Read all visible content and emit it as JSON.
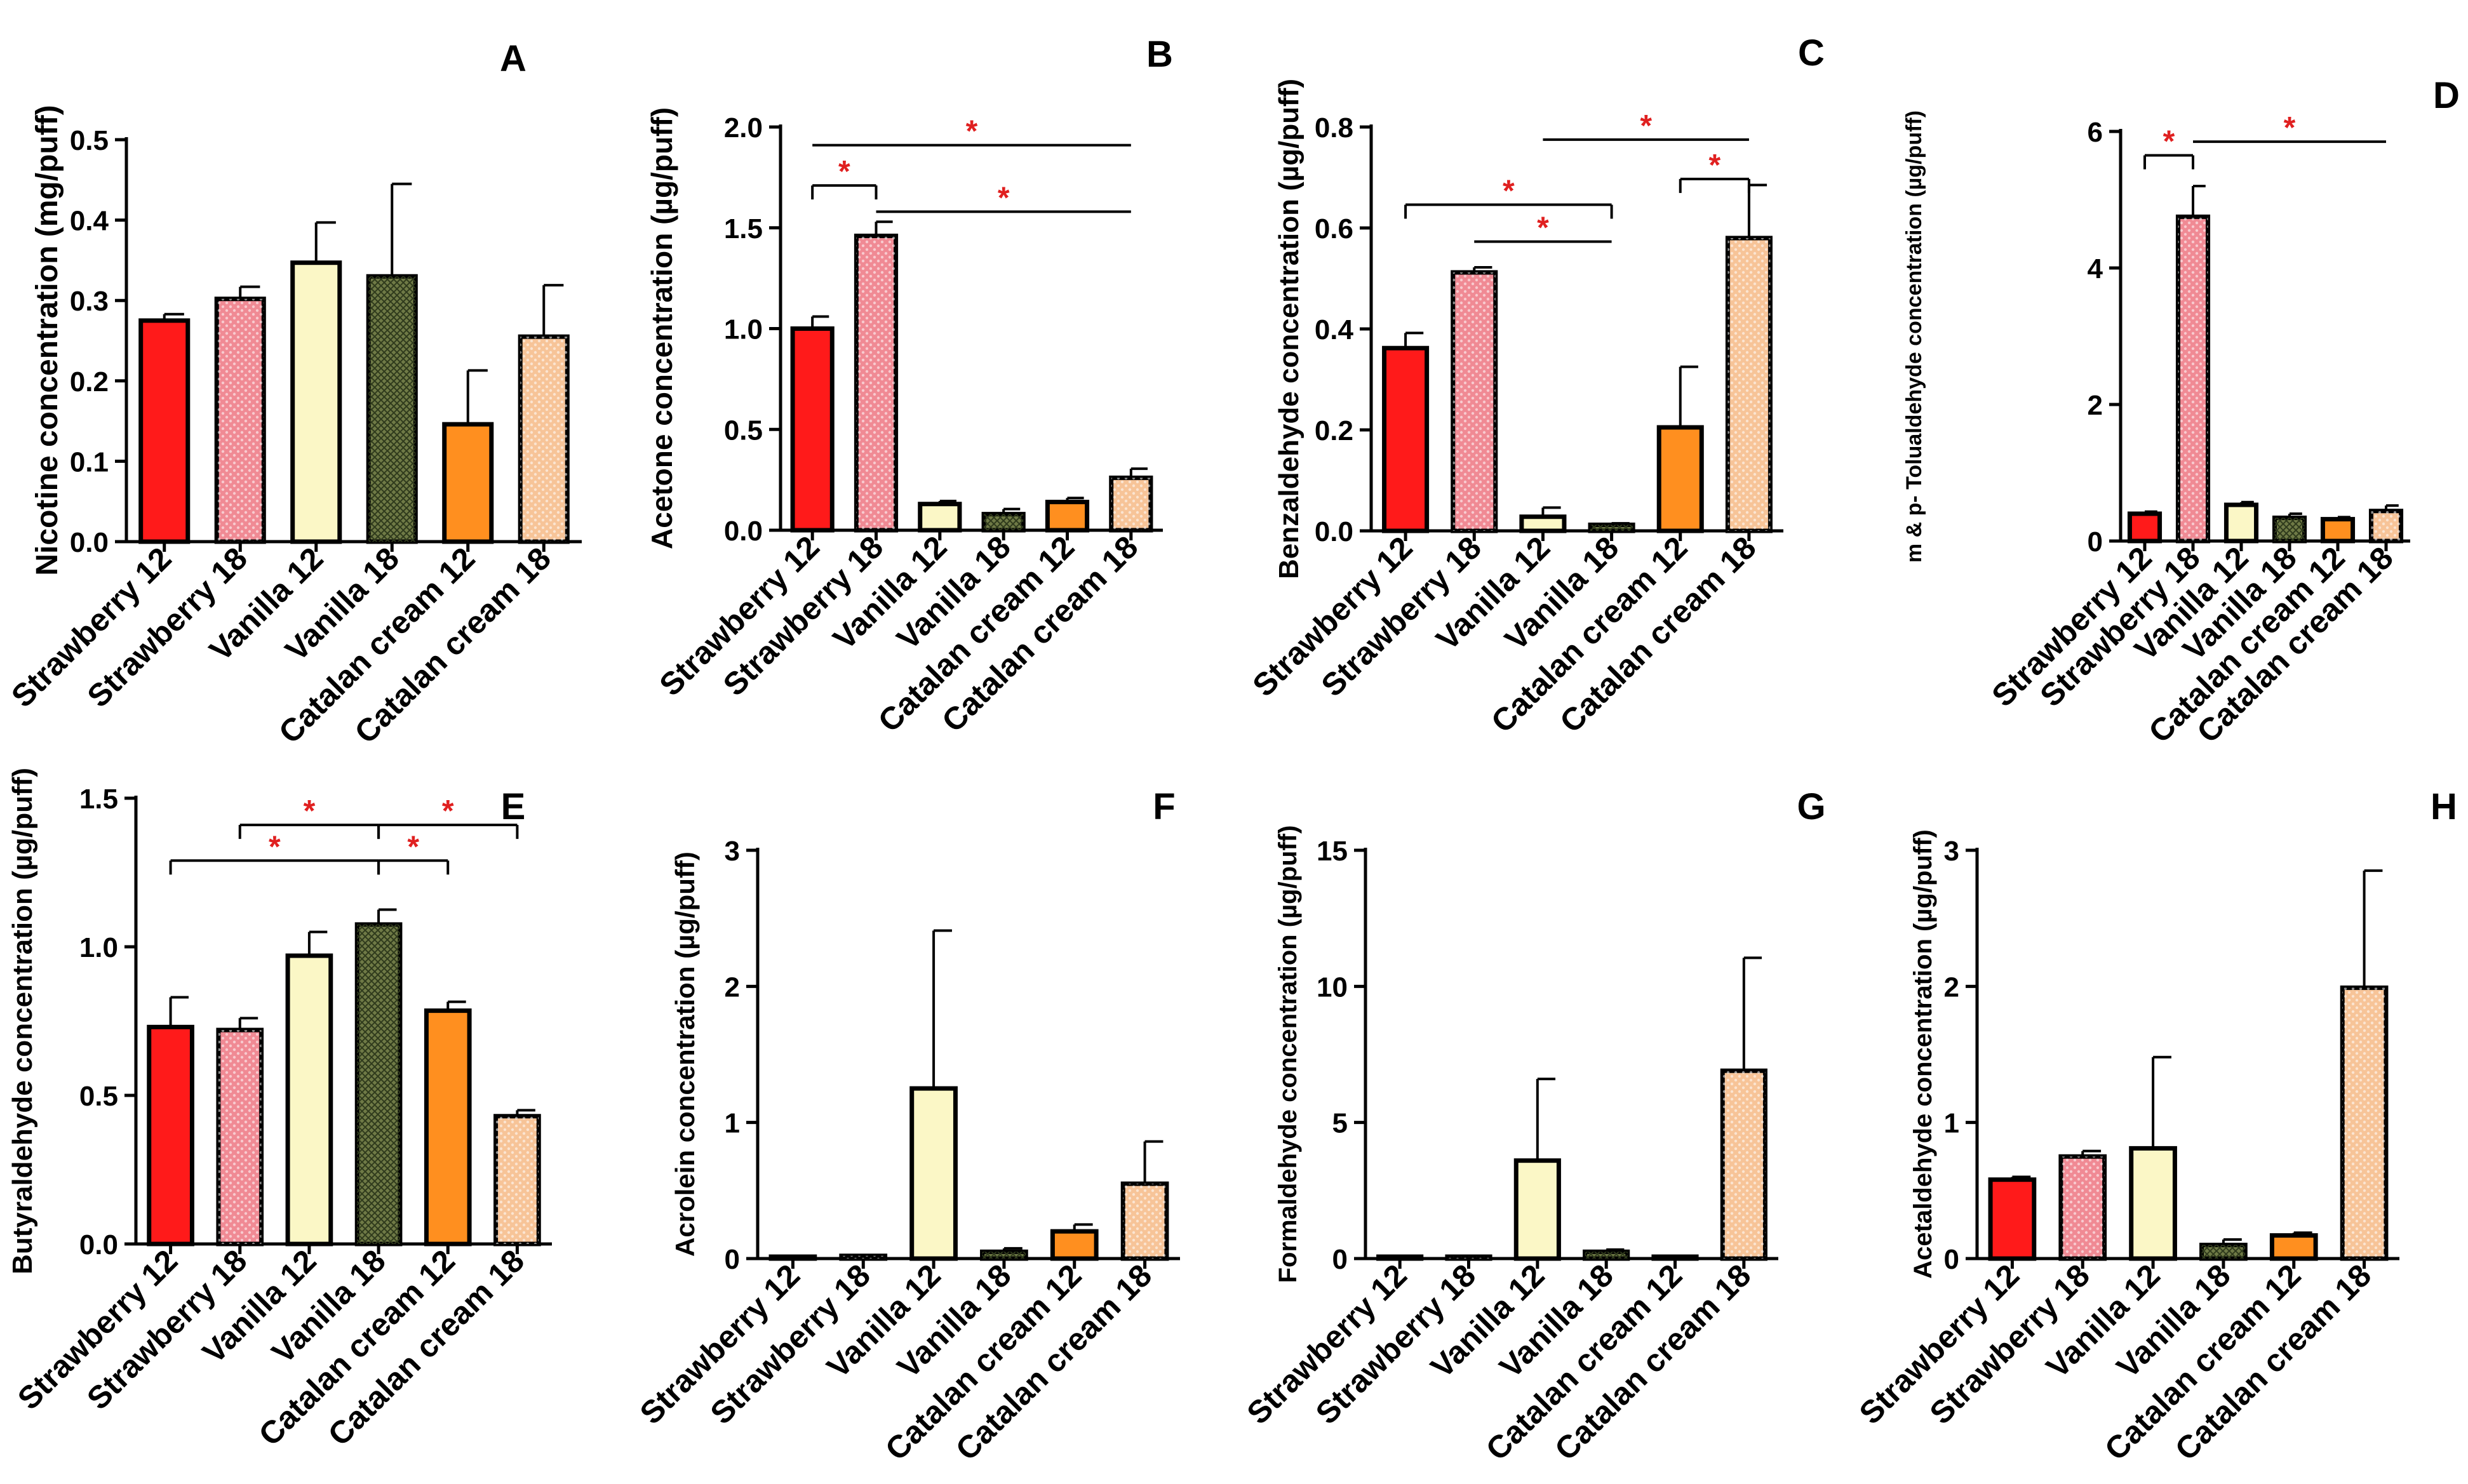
{
  "figure": {
    "categories": [
      "Strawberry 12",
      "Strawberry 18",
      "Vanilla 12",
      "Vanilla 18",
      "Catalan cream 12",
      "Catalan cream 18"
    ],
    "bar_colors": [
      "#ff1a1a",
      "#f08a94",
      "#fbf7c6",
      "#6f7a46",
      "#ff8f1f",
      "#f7c498"
    ],
    "significance_color": "#e02020",
    "significance_symbol": "*"
  },
  "chart_data": [
    {
      "id": "A",
      "panel_letter": "A",
      "type": "bar",
      "ylabel": "Nicotine concentration (mg/puff)",
      "ylim": [
        0,
        0.5
      ],
      "yticks": [
        "0.0",
        "0.1",
        "0.2",
        "0.3",
        "0.4",
        "0.5"
      ],
      "values": [
        0.275,
        0.302,
        0.347,
        0.33,
        0.146,
        0.255
      ],
      "errors": [
        0.008,
        0.015,
        0.05,
        0.115,
        0.067,
        0.064
      ],
      "significance": []
    },
    {
      "id": "B",
      "panel_letter": "B",
      "type": "bar",
      "ylabel": "Acetone concentration (µg/puff)",
      "ylim": [
        0,
        2.0
      ],
      "yticks": [
        "0.0",
        "0.5",
        "1.0",
        "1.5",
        "2.0"
      ],
      "values": [
        1.0,
        1.46,
        0.13,
        0.08,
        0.14,
        0.26
      ],
      "errors": [
        0.06,
        0.07,
        0.015,
        0.025,
        0.02,
        0.045
      ],
      "significance": [
        {
          "from": 0,
          "to": 1,
          "y": 1.71,
          "bracket": true
        },
        {
          "from": 0,
          "to": 5,
          "y": 1.91,
          "bracket": false
        },
        {
          "from": 1,
          "to": 5,
          "y": 1.58,
          "bracket": false
        }
      ]
    },
    {
      "id": "C",
      "panel_letter": "C",
      "type": "bar",
      "ylabel": "Benzaldehyde concentration (µg/puff)",
      "ylim": [
        0,
        0.8
      ],
      "yticks": [
        "0.0",
        "0.2",
        "0.4",
        "0.6",
        "0.8"
      ],
      "values": [
        0.362,
        0.512,
        0.028,
        0.012,
        0.205,
        0.58
      ],
      "errors": [
        0.03,
        0.01,
        0.018,
        0.003,
        0.12,
        0.105
      ],
      "significance": [
        {
          "from": 2,
          "to": 5,
          "y": 0.775,
          "bracket": false
        },
        {
          "from": 4,
          "to": 5,
          "y": 0.697,
          "bracket": true
        },
        {
          "from": 0,
          "to": 3,
          "y": 0.646,
          "bracket": true
        },
        {
          "from": 1,
          "to": 3,
          "y": 0.573,
          "bracket": false
        }
      ]
    },
    {
      "id": "D",
      "panel_letter": "D",
      "type": "bar",
      "ylabel": "m & p- Tolualdehyde concentration (µg/puff)",
      "ylim": [
        0,
        6
      ],
      "yticks": [
        "0",
        "2",
        "4",
        "6"
      ],
      "values": [
        0.4,
        4.75,
        0.53,
        0.34,
        0.32,
        0.44
      ],
      "errors": [
        0.03,
        0.45,
        0.04,
        0.06,
        0.03,
        0.08
      ],
      "significance": [
        {
          "from": 0,
          "to": 1,
          "y": 5.65,
          "bracket": true
        },
        {
          "from": 1,
          "to": 5,
          "y": 5.85,
          "bracket": false
        }
      ]
    },
    {
      "id": "E",
      "panel_letter": "E",
      "type": "bar",
      "ylabel": "Butyraldehyde concentration (µg/puff)",
      "ylim": [
        0,
        1.5
      ],
      "yticks": [
        "0.0",
        "0.5",
        "1.0",
        "1.5"
      ],
      "values": [
        0.73,
        0.72,
        0.97,
        1.075,
        0.785,
        0.43
      ],
      "errors": [
        0.1,
        0.04,
        0.08,
        0.05,
        0.03,
        0.02
      ],
      "significance": [
        {
          "from": 1,
          "to": 3,
          "y": 1.41,
          "bracket": true
        },
        {
          "from": 3,
          "to": 5,
          "y": 1.41,
          "bracket": true
        },
        {
          "from": 0,
          "to": 3,
          "y": 1.29,
          "bracket": true
        },
        {
          "from": 3,
          "to": 4,
          "y": 1.29,
          "bracket": true
        }
      ]
    },
    {
      "id": "F",
      "panel_letter": "F",
      "type": "bar",
      "ylabel": "Acrolein concentration (µg/puff)",
      "ylim": [
        0,
        3
      ],
      "yticks": [
        "0",
        "1",
        "2",
        "3"
      ],
      "values": [
        0.01,
        0.02,
        1.25,
        0.05,
        0.2,
        0.55
      ],
      "errors": [
        0.003,
        0.005,
        1.16,
        0.025,
        0.05,
        0.31
      ],
      "significance": []
    },
    {
      "id": "G",
      "panel_letter": "G",
      "type": "bar",
      "ylabel": "Formaldehyde concentration (µg/puff)",
      "ylim": [
        0,
        15
      ],
      "yticks": [
        "0",
        "5",
        "10",
        "15"
      ],
      "values": [
        0.02,
        0.04,
        3.6,
        0.25,
        0.03,
        6.9
      ],
      "errors": [
        0.01,
        0.01,
        3.0,
        0.08,
        0.01,
        4.15
      ],
      "significance": []
    },
    {
      "id": "H",
      "panel_letter": "H",
      "type": "bar",
      "ylabel": "Acetaldehyde concentration (µg/puff)",
      "ylim": [
        0,
        3
      ],
      "yticks": [
        "0",
        "1",
        "2",
        "3"
      ],
      "values": [
        0.58,
        0.75,
        0.81,
        0.1,
        0.17,
        1.99
      ],
      "errors": [
        0.02,
        0.04,
        0.67,
        0.04,
        0.02,
        0.86
      ],
      "significance": []
    }
  ]
}
